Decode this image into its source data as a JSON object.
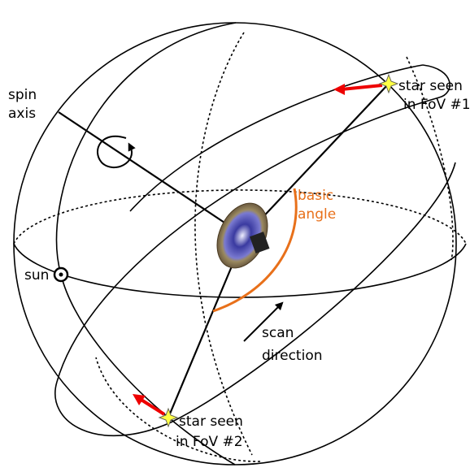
{
  "labels": {
    "spin_axis": [
      "spin",
      "axis"
    ],
    "sun": "sun",
    "star_fov1": [
      "star seen",
      "in FoV #1"
    ],
    "basic_angle": [
      "basic",
      "angle"
    ],
    "scan_direction": [
      "scan",
      "direction"
    ],
    "star_fov2": [
      "star seen",
      "in FoV #2"
    ]
  }
}
